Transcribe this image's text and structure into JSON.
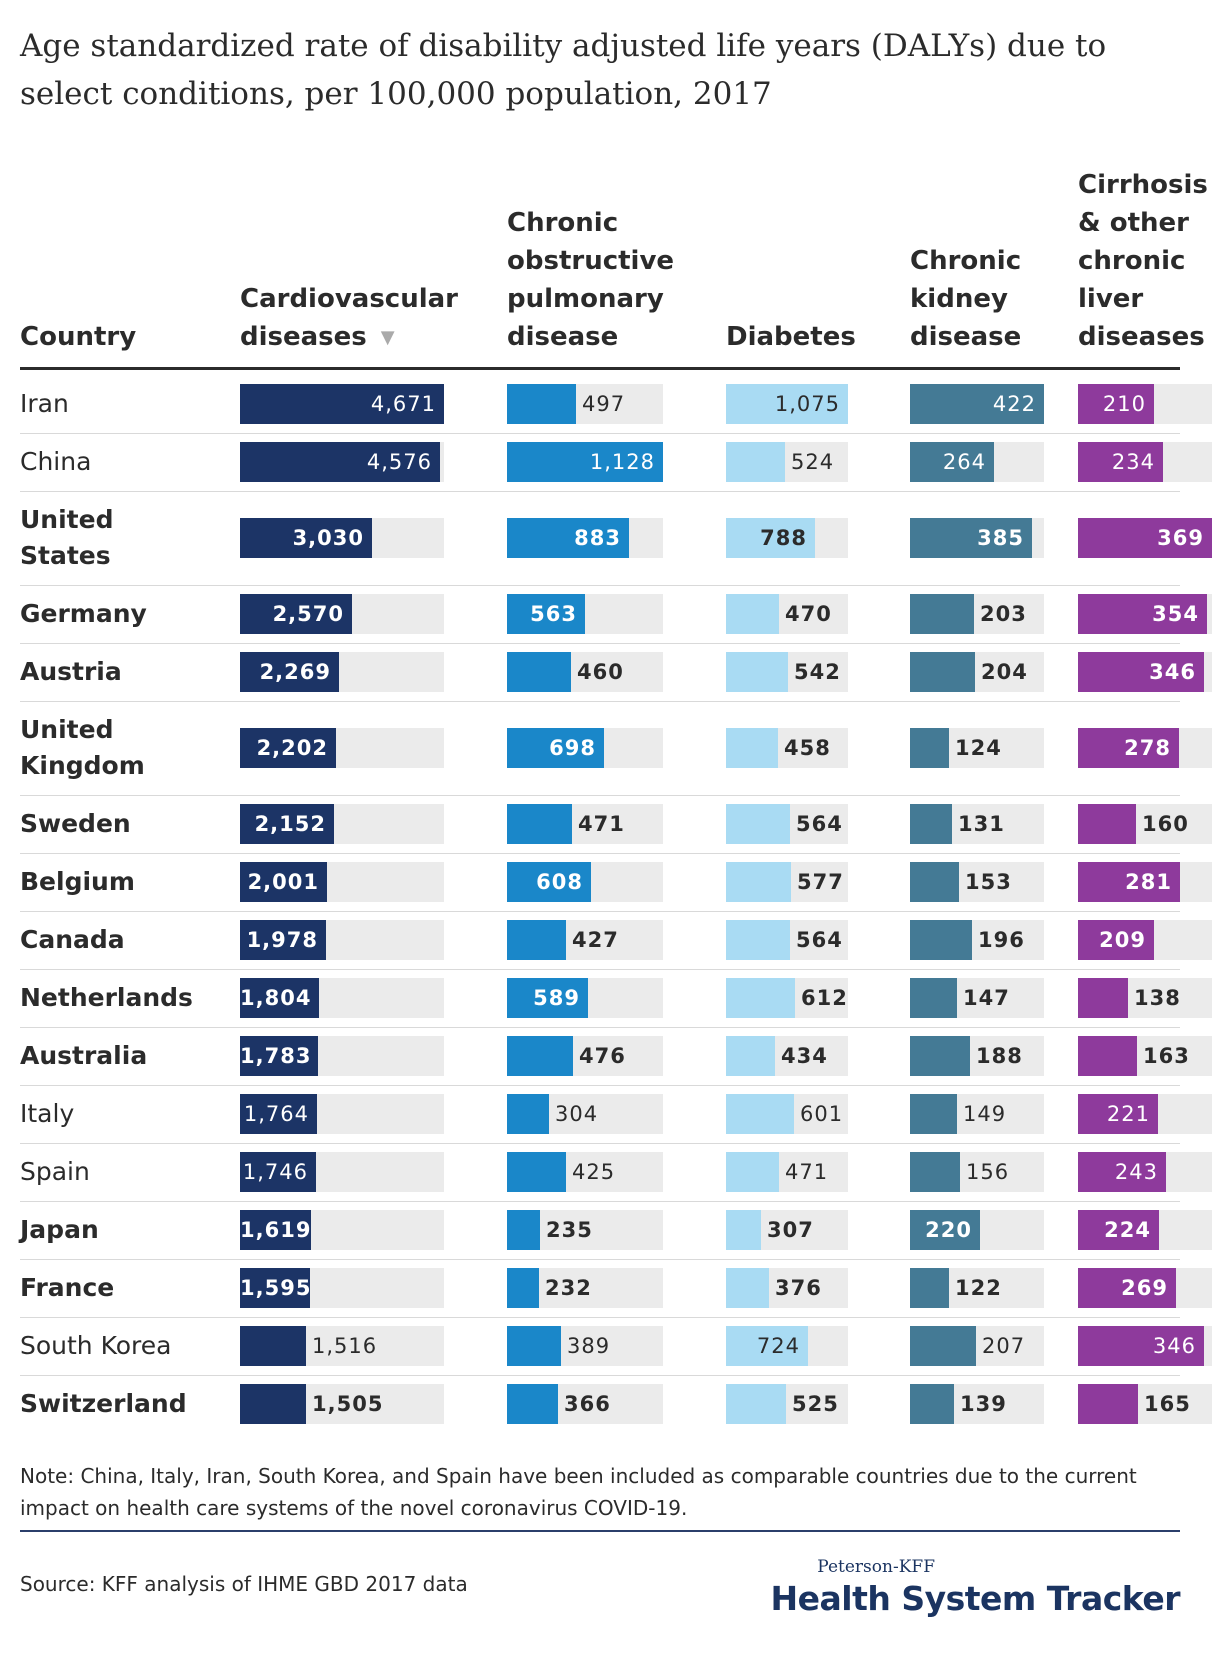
{
  "title": "Age standardized rate of disability adjusted life years (DALYs) due to select conditions, per 100,000 population, 2017",
  "headers": {
    "country": [
      "Country"
    ],
    "cardio": [
      "Cardiovascular",
      "diseases"
    ],
    "copd": [
      "Chronic",
      "obstructive",
      "pulmonary",
      "disease"
    ],
    "diabetes": [
      "Diabetes"
    ],
    "kidney": [
      "Chronic",
      "kidney",
      "disease"
    ],
    "liver": [
      "Cirrhosis",
      "& other",
      "chronic",
      "liver",
      "diseases"
    ]
  },
  "sort_icon": "sort-down-triangle-icon",
  "colors": {
    "cardio": "#1c3466",
    "copd": "#1a87c9",
    "diabetes": "#a9dbf3",
    "kidney": "#447a95",
    "liver": "#8e3a9c",
    "track": "#ebebeb"
  },
  "chart_data": {
    "type": "table",
    "columns": [
      "Cardiovascular diseases",
      "Chronic obstructive pulmonary disease",
      "Diabetes",
      "Chronic kidney disease",
      "Cirrhosis & other chronic liver diseases"
    ],
    "rows": [
      {
        "country": "Iran",
        "bold": false,
        "values": [
          4671,
          497,
          1075,
          422,
          210
        ],
        "labels": [
          "4,671",
          "497",
          "1,075",
          "422",
          "210"
        ]
      },
      {
        "country": "China",
        "bold": false,
        "values": [
          4576,
          1128,
          524,
          264,
          234
        ],
        "labels": [
          "4,576",
          "1,128",
          "524",
          "264",
          "234"
        ]
      },
      {
        "country": "United States",
        "bold": true,
        "values": [
          3030,
          883,
          788,
          385,
          369
        ],
        "labels": [
          "3,030",
          "883",
          "788",
          "385",
          "369"
        ]
      },
      {
        "country": "Germany",
        "bold": true,
        "values": [
          2570,
          563,
          470,
          203,
          354
        ],
        "labels": [
          "2,570",
          "563",
          "470",
          "203",
          "354"
        ]
      },
      {
        "country": "Austria",
        "bold": true,
        "values": [
          2269,
          460,
          542,
          204,
          346
        ],
        "labels": [
          "2,269",
          "460",
          "542",
          "204",
          "346"
        ]
      },
      {
        "country": "United Kingdom",
        "bold": true,
        "values": [
          2202,
          698,
          458,
          124,
          278
        ],
        "labels": [
          "2,202",
          "698",
          "458",
          "124",
          "278"
        ]
      },
      {
        "country": "Sweden",
        "bold": true,
        "values": [
          2152,
          471,
          564,
          131,
          160
        ],
        "labels": [
          "2,152",
          "471",
          "564",
          "131",
          "160"
        ]
      },
      {
        "country": "Belgium",
        "bold": true,
        "values": [
          2001,
          608,
          577,
          153,
          281
        ],
        "labels": [
          "2,001",
          "608",
          "577",
          "153",
          "281"
        ]
      },
      {
        "country": "Canada",
        "bold": true,
        "values": [
          1978,
          427,
          564,
          196,
          209
        ],
        "labels": [
          "1,978",
          "427",
          "564",
          "196",
          "209"
        ]
      },
      {
        "country": "Netherlands",
        "bold": true,
        "values": [
          1804,
          589,
          612,
          147,
          138
        ],
        "labels": [
          "1,804",
          "589",
          "612",
          "147",
          "138"
        ]
      },
      {
        "country": "Australia",
        "bold": true,
        "values": [
          1783,
          476,
          434,
          188,
          163
        ],
        "labels": [
          "1,783",
          "476",
          "434",
          "188",
          "163"
        ]
      },
      {
        "country": "Italy",
        "bold": false,
        "values": [
          1764,
          304,
          601,
          149,
          221
        ],
        "labels": [
          "1,764",
          "304",
          "601",
          "149",
          "221"
        ]
      },
      {
        "country": "Spain",
        "bold": false,
        "values": [
          1746,
          425,
          471,
          156,
          243
        ],
        "labels": [
          "1,746",
          "425",
          "471",
          "156",
          "243"
        ]
      },
      {
        "country": "Japan",
        "bold": true,
        "values": [
          1619,
          235,
          307,
          220,
          224
        ],
        "labels": [
          "1,619",
          "235",
          "307",
          "220",
          "224"
        ]
      },
      {
        "country": "France",
        "bold": true,
        "values": [
          1595,
          232,
          376,
          122,
          269
        ],
        "labels": [
          "1,595",
          "232",
          "376",
          "122",
          "269"
        ]
      },
      {
        "country": "South Korea",
        "bold": false,
        "values": [
          1516,
          389,
          724,
          207,
          346
        ],
        "labels": [
          "1,516",
          "389",
          "724",
          "207",
          "346"
        ]
      },
      {
        "country": "Switzerland",
        "bold": true,
        "values": [
          1505,
          366,
          525,
          139,
          165
        ],
        "labels": [
          "1,505",
          "366",
          "525",
          "139",
          "165"
        ]
      }
    ],
    "column_max": [
      4671,
      1128,
      1075,
      422,
      369
    ],
    "sorted_by": "Cardiovascular diseases (descending)"
  },
  "note": "Note: China, Italy, Iran, South Korea, and Spain have been included as comparable countries due to the current impact on health care systems of the novel coronavirus COVID-19.",
  "source": "Source: KFF analysis of IHME GBD 2017 data",
  "logo": {
    "top": "Peterson-KFF",
    "main": "Health System Tracker"
  }
}
